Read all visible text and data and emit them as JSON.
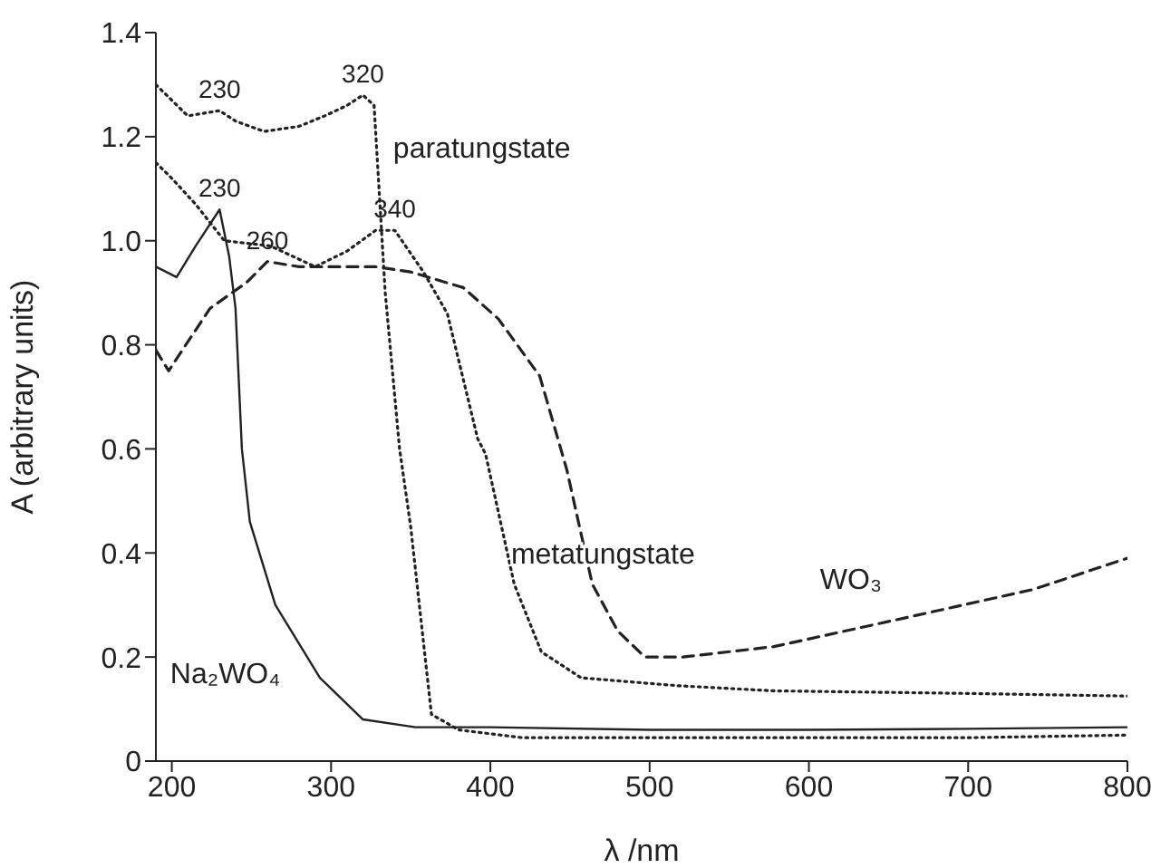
{
  "chart_data": {
    "type": "line",
    "xlabel": "λ /nm",
    "ylabel": "A (arbitrary units)",
    "xlim": [
      190,
      800
    ],
    "xticks": [
      200,
      300,
      400,
      500,
      600,
      700,
      800
    ],
    "ylim": [
      0,
      1.4
    ],
    "yticks": [
      0,
      0.2,
      0.4,
      0.6,
      0.8,
      {
        "value": 1,
        "label": "1.0"
      },
      {
        "value": 1.2,
        "label": "1.2"
      },
      {
        "value": 1.4,
        "label": "1.4"
      }
    ],
    "marker": "none",
    "series": [
      {
        "name": "paratungstate",
        "color": "#222222",
        "line_style": "dotted",
        "x": [
          190,
          200,
          210,
          230,
          240,
          258,
          280,
          296,
          310,
          320,
          327,
          334,
          343,
          350,
          363,
          380,
          420,
          500,
          600,
          700,
          800
        ],
        "values": [
          1.3,
          1.27,
          1.24,
          1.25,
          1.23,
          1.21,
          1.22,
          1.24,
          1.26,
          1.28,
          1.26,
          0.9,
          0.6,
          0.45,
          0.09,
          0.06,
          0.045,
          0.045,
          0.045,
          0.045,
          0.05
        ]
      },
      {
        "name": "metatungstate",
        "color": "#222222",
        "line_style": "dotted",
        "x": [
          190,
          200,
          215,
          233,
          262,
          290,
          310,
          328,
          340,
          358,
          373,
          392,
          397,
          415,
          432,
          457,
          517,
          578,
          700,
          800
        ],
        "values": [
          1.15,
          1.12,
          1.07,
          1,
          0.99,
          0.95,
          0.98,
          1.02,
          1.02,
          0.94,
          0.86,
          0.62,
          0.59,
          0.34,
          0.21,
          0.16,
          0.145,
          0.135,
          0.13,
          0.125
        ]
      },
      {
        "name": "WO₃",
        "color": "#222222",
        "line_style": "dashed",
        "x": [
          190,
          198,
          224,
          247,
          260,
          280,
          328,
          350,
          383,
          405,
          431,
          448,
          464,
          480,
          497,
          521,
          578,
          660,
          741,
          800
        ],
        "values": [
          0.79,
          0.75,
          0.87,
          0.92,
          0.96,
          0.95,
          0.95,
          0.94,
          0.91,
          0.85,
          0.74,
          0.56,
          0.34,
          0.25,
          0.2,
          0.2,
          0.22,
          0.275,
          0.33,
          0.39
        ]
      },
      {
        "name": "Na₂WO₄",
        "color": "#222222",
        "line_style": "solid",
        "x": [
          190,
          203,
          215,
          230,
          236,
          240,
          244,
          249,
          265,
          293,
          320,
          353,
          400,
          500,
          600,
          700,
          800
        ],
        "values": [
          0.95,
          0.93,
          0.99,
          1.06,
          0.97,
          0.87,
          0.6,
          0.46,
          0.3,
          0.16,
          0.08,
          0.065,
          0.065,
          0.06,
          0.06,
          0.062,
          0.065
        ]
      }
    ],
    "annotations": [
      {
        "text": "230",
        "x": 230,
        "y": 1.25
      },
      {
        "text": "320",
        "x": 320,
        "y": 1.28
      },
      {
        "text": "230",
        "x": 230,
        "y": 1.06
      },
      {
        "text": "340",
        "x": 340,
        "y": 1.02
      },
      {
        "text": "260",
        "x": 260,
        "y": 0.96
      }
    ]
  }
}
